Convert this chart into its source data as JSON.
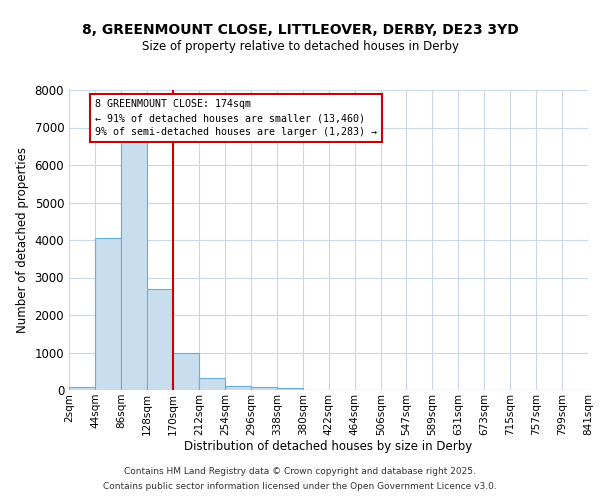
{
  "title1": "8, GREENMOUNT CLOSE, LITTLEOVER, DERBY, DE23 3YD",
  "title2": "Size of property relative to detached houses in Derby",
  "xlabel": "Distribution of detached houses by size in Derby",
  "ylabel": "Number of detached properties",
  "bin_labels": [
    "2sqm",
    "44sqm",
    "86sqm",
    "128sqm",
    "170sqm",
    "212sqm",
    "254sqm",
    "296sqm",
    "338sqm",
    "380sqm",
    "422sqm",
    "464sqm",
    "506sqm",
    "547sqm",
    "589sqm",
    "631sqm",
    "673sqm",
    "715sqm",
    "757sqm",
    "799sqm",
    "841sqm"
  ],
  "bin_edges": [
    2,
    44,
    86,
    128,
    170,
    212,
    254,
    296,
    338,
    380,
    422,
    464,
    506,
    547,
    589,
    631,
    673,
    715,
    757,
    799,
    841
  ],
  "bar_values": [
    75,
    4050,
    6650,
    2700,
    1000,
    330,
    120,
    75,
    50,
    0,
    0,
    0,
    0,
    0,
    0,
    0,
    0,
    0,
    0,
    0
  ],
  "bar_color": "#c8dded",
  "bar_edgecolor": "#6aaed6",
  "property_line_x": 170,
  "annotation_text": "8 GREENMOUNT CLOSE: 174sqm\n← 91% of detached houses are smaller (13,460)\n9% of semi-detached houses are larger (1,283) →",
  "annotation_box_color": "#cc0000",
  "ylim": [
    0,
    8000
  ],
  "yticks": [
    0,
    1000,
    2000,
    3000,
    4000,
    5000,
    6000,
    7000,
    8000
  ],
  "bg_color": "#ffffff",
  "plot_bg_color": "#ffffff",
  "grid_color": "#c8d8e8",
  "footer1": "Contains HM Land Registry data © Crown copyright and database right 2025.",
  "footer2": "Contains public sector information licensed under the Open Government Licence v3.0."
}
